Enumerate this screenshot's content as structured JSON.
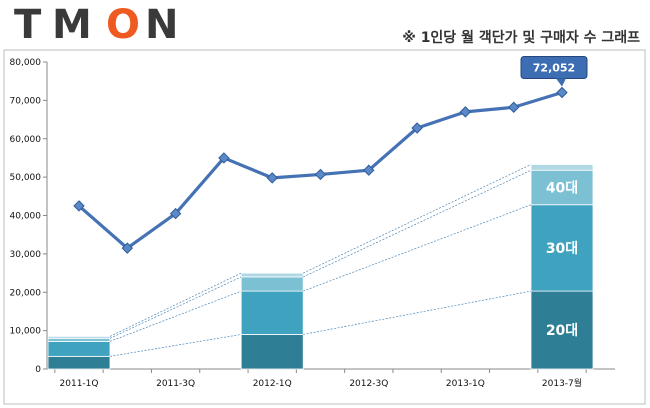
{
  "brand": {
    "logo_letters": [
      "T",
      "M",
      "O",
      "N"
    ],
    "logo_color": "#3a3a3a",
    "accent_color": "#ee5a1f"
  },
  "caption": "※ 1인당 월 객단가 및 구매자 수 그래프",
  "chart_data": {
    "type": "line",
    "title": "※ 1인당 월 객단가 및 구매자 수 그래프",
    "xlabel": "",
    "ylabel": "",
    "ylim": [
      0,
      80000
    ],
    "yticks": [
      0,
      10000,
      20000,
      30000,
      40000,
      50000,
      60000,
      70000,
      80000
    ],
    "ytick_labels": [
      "0",
      "10,000",
      "20,000",
      "30,000",
      "40,000",
      "50,000",
      "60,000",
      "70,000",
      "80,000"
    ],
    "xtick_labels": [
      "2011-1Q",
      "2011-3Q",
      "2012-1Q",
      "2012-3Q",
      "2013-1Q",
      "2013-7월"
    ],
    "grid": false,
    "line_color": "#4572b4",
    "series": [
      {
        "values": [
          42500,
          31500,
          40500,
          55000,
          49800,
          50700,
          51800,
          62800,
          67000,
          68200,
          72052
        ]
      }
    ],
    "callout": {
      "index": 10,
      "text": "72,052"
    },
    "stacked_bars": [
      {
        "position": "2011-1Q",
        "segments": [
          {
            "value": 3300,
            "color": "#2e7f95"
          },
          {
            "value": 3900,
            "color": "#3fa3bf"
          },
          {
            "value": 800,
            "color": "#7cc0d3"
          },
          {
            "value": 500,
            "color": "#b2d9e3"
          }
        ]
      },
      {
        "position": "2012-1Q",
        "segments": [
          {
            "value": 9000,
            "color": "#2e7f95"
          },
          {
            "value": 11300,
            "color": "#3fa3bf"
          },
          {
            "value": 3700,
            "color": "#7cc0d3"
          },
          {
            "value": 1000,
            "color": "#b2d9e3"
          }
        ]
      },
      {
        "position": "2013-7월",
        "segments": [
          {
            "value": 20300,
            "color": "#2e7f95",
            "label": "20대"
          },
          {
            "value": 22500,
            "color": "#3fa3bf",
            "label": "30대"
          },
          {
            "value": 9000,
            "color": "#7cc0d3",
            "label": "40대"
          },
          {
            "value": 1500,
            "color": "#b2d9e3"
          }
        ]
      }
    ]
  }
}
